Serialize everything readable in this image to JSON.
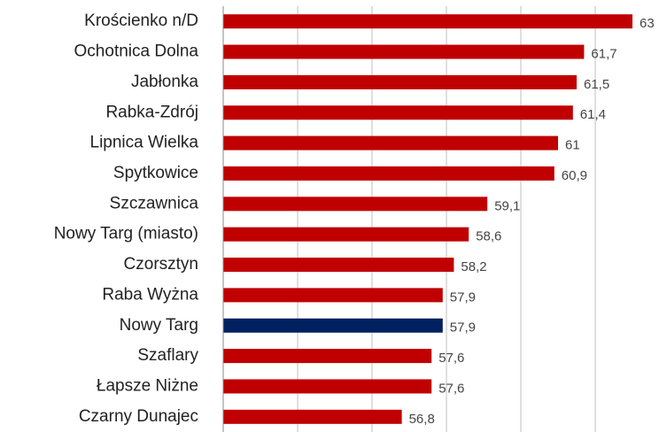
{
  "chart_data": {
    "type": "hbar",
    "categories": [
      "Krościenko n/D",
      "Ochotnica Dolna",
      "Jabłonka",
      "Rabka-Zdrój",
      "Lipnica Wielka",
      "Spytkowice",
      "Szczawnica",
      "Nowy Targ (miasto)",
      "Czorsztyn",
      "Raba Wyżna",
      "Nowy Targ",
      "Szaflary",
      "Łapsze Niżne",
      "Czarny Dunajec"
    ],
    "values": [
      63,
      61.7,
      61.5,
      61.4,
      61,
      60.9,
      59.1,
      58.6,
      58.2,
      57.9,
      57.9,
      57.6,
      57.6,
      56.8
    ],
    "value_labels": [
      "63",
      "61,7",
      "61,5",
      "61,4",
      "61",
      "60,9",
      "59,1",
      "58,6",
      "58,2",
      "57,9",
      "57,9",
      "57,6",
      "57,6",
      "56,8"
    ],
    "colors": [
      "#c00000",
      "#c00000",
      "#c00000",
      "#c00000",
      "#c00000",
      "#c00000",
      "#c00000",
      "#c00000",
      "#c00000",
      "#c00000",
      "#002060",
      "#c00000",
      "#c00000",
      "#c00000"
    ],
    "xlim": [
      52,
      64
    ],
    "xticks": [
      52,
      54,
      56,
      58,
      60,
      62,
      64
    ],
    "grid": true
  }
}
